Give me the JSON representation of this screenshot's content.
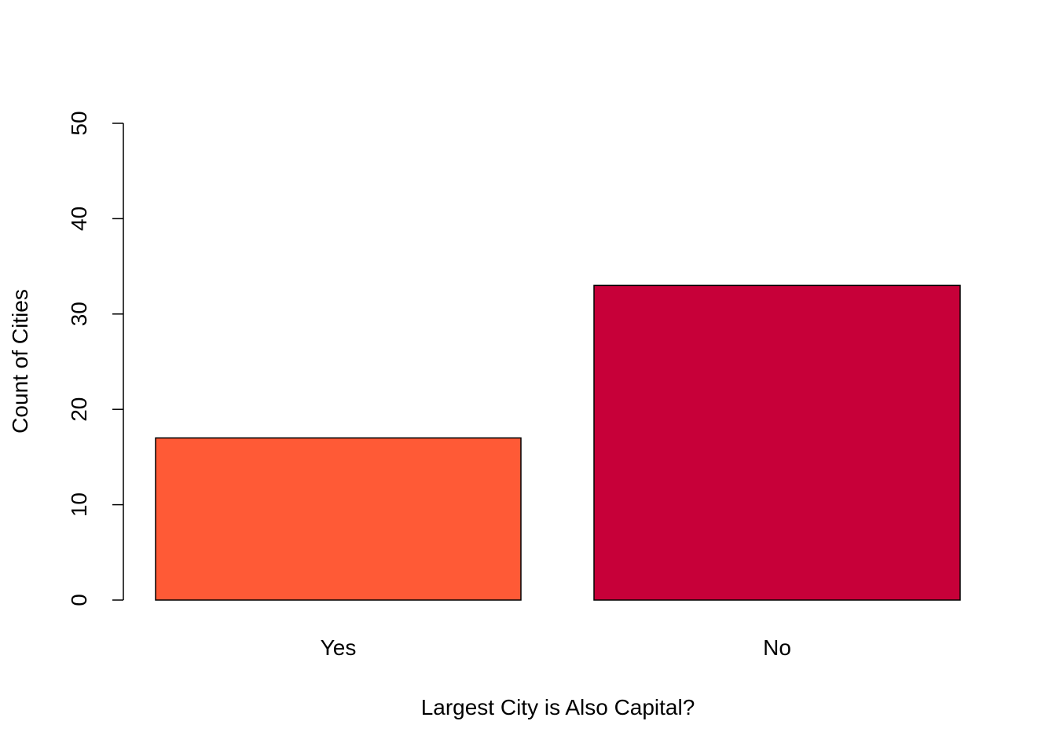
{
  "chart_data": {
    "type": "bar",
    "categories": [
      "Yes",
      "No"
    ],
    "values": [
      17,
      33
    ],
    "colors": [
      "#FF5A36",
      "#C70039"
    ],
    "xlabel": "Largest City is Also Capital?",
    "ylabel": "Count of Cities",
    "ylim": [
      0,
      50
    ],
    "yticks": [
      "0",
      "10",
      "20",
      "30",
      "40",
      "50"
    ],
    "grid": false,
    "legend": "none"
  }
}
